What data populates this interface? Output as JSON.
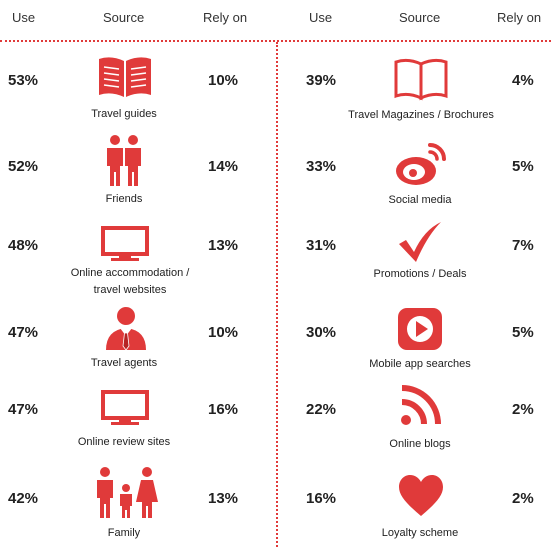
{
  "headers": {
    "left_use": "Use",
    "left_source": "Source",
    "left_rely": "Rely on",
    "right_use": "Use",
    "right_source": "Source",
    "right_rely": "Rely on"
  },
  "colors": {
    "accent": "#e03a3a",
    "text": "#222222"
  },
  "left_rows": [
    {
      "use": "53%",
      "source": "Travel guides",
      "rely": "10%",
      "icon": "open-book-icon"
    },
    {
      "use": "52%",
      "source": "Friends",
      "rely": "14%",
      "icon": "two-people-icon"
    },
    {
      "use": "48%",
      "source_line1": "Online accommodation /",
      "source_line2": "travel websites",
      "rely": "13%",
      "icon": "monitor-icon"
    },
    {
      "use": "47%",
      "source": "Travel agents",
      "rely": "10%",
      "icon": "agent-person-icon"
    },
    {
      "use": "47%",
      "source": "Online review sites",
      "rely": "16%",
      "icon": "monitor-icon"
    },
    {
      "use": "42%",
      "source": "Family",
      "rely": "13%",
      "icon": "family-icon"
    }
  ],
  "right_rows": [
    {
      "use": "39%",
      "source": "Travel Magazines / Brochures",
      "rely": "4%",
      "icon": "open-book-outline-icon"
    },
    {
      "use": "33%",
      "source": "Social media",
      "rely": "5%",
      "icon": "weibo-icon"
    },
    {
      "use": "31%",
      "source": "Promotions / Deals",
      "rely": "7%",
      "icon": "checkmark-icon"
    },
    {
      "use": "30%",
      "source": "Mobile app searches",
      "rely": "5%",
      "icon": "play-button-icon"
    },
    {
      "use": "22%",
      "source": "Online blogs",
      "rely": "2%",
      "icon": "rss-feed-icon"
    },
    {
      "use": "16%",
      "source": "Loyalty scheme",
      "rely": "2%",
      "icon": "heart-icon"
    }
  ]
}
